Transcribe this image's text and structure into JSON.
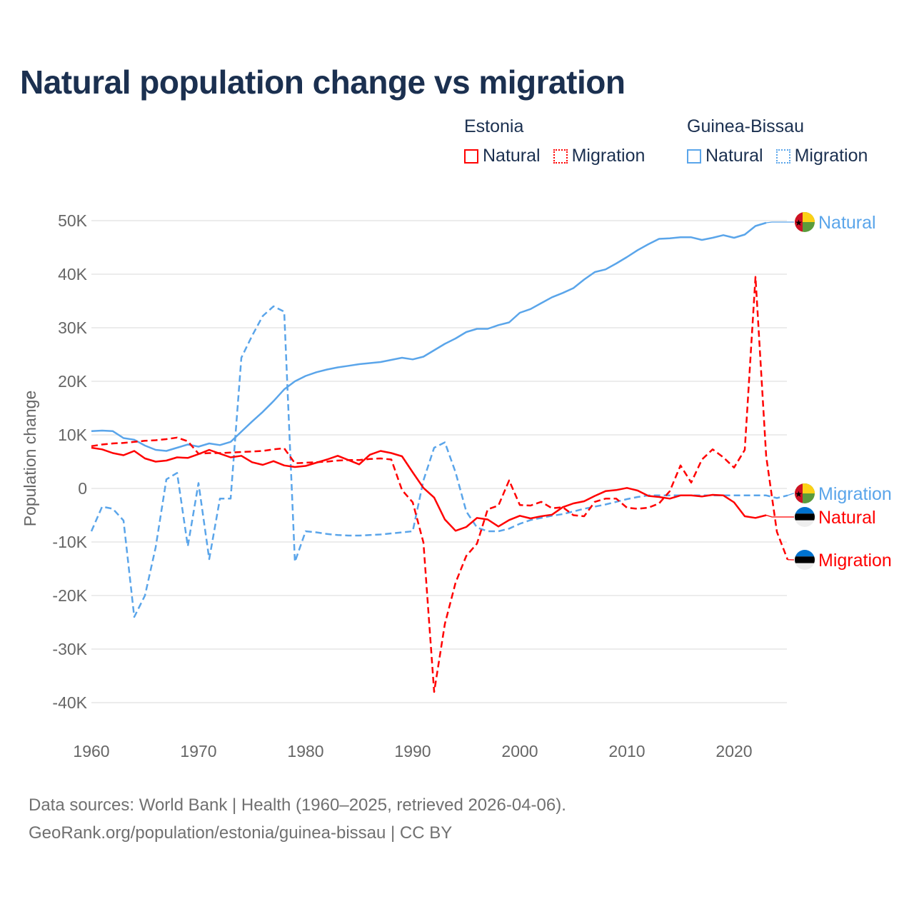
{
  "title": "Natural population change vs migration",
  "legend": {
    "groups": [
      {
        "name": "Estonia",
        "items": [
          "Natural",
          "Migration"
        ],
        "color": "#ff0000"
      },
      {
        "name": "Guinea-Bissau",
        "items": [
          "Natural",
          "Migration"
        ],
        "color": "#5aa5ea"
      }
    ]
  },
  "footer": {
    "line1": "Data sources: World Bank | Health (1960–2025, retrieved 2026-04-06).",
    "line2": "GeoRank.org/population/estonia/guinea-bissau | CC BY"
  },
  "chart_data": {
    "type": "line",
    "title": "Natural population change vs migration",
    "xlabel": "",
    "ylabel": "Population change",
    "xlim": [
      1960,
      2025
    ],
    "ylim": [
      -45000,
      50000
    ],
    "x_ticks": [
      "1960",
      "1970",
      "1980",
      "1990",
      "2000",
      "2010",
      "2020"
    ],
    "y_ticks": [
      {
        "value": 50000,
        "label": "50K"
      },
      {
        "value": 40000,
        "label": "40K"
      },
      {
        "value": 30000,
        "label": "30K"
      },
      {
        "value": 20000,
        "label": "20K"
      },
      {
        "value": 10000,
        "label": "10K"
      },
      {
        "value": 0,
        "label": "0"
      },
      {
        "value": -10000,
        "label": "-10K"
      },
      {
        "value": -20000,
        "label": "-20K"
      },
      {
        "value": -30000,
        "label": "-30K"
      },
      {
        "value": -40000,
        "label": "-40K"
      }
    ],
    "grid": true,
    "legend_position": "top-right",
    "x_start": 1960,
    "series": [
      {
        "name": "Guinea-Bissau Natural",
        "label": "Natural",
        "color": "#5aa5ea",
        "dash": false,
        "flag": "guinea-bissau",
        "values": [
          10.7,
          10.8,
          10.7,
          9.4,
          9.1,
          8.0,
          7.2,
          7.0,
          7.6,
          8.2,
          7.8,
          8.4,
          8.1,
          8.7,
          10.6,
          12.5,
          14.3,
          16.3,
          18.5,
          20.0,
          21.0,
          21.7,
          22.2,
          22.6,
          22.9,
          23.2,
          23.4,
          23.6,
          24.0,
          24.4,
          24.1,
          24.6,
          25.8,
          27.0,
          28.0,
          29.2,
          29.8,
          29.8,
          30.5,
          31.0,
          32.8,
          33.5,
          34.6,
          35.7,
          36.5,
          37.4,
          39.0,
          40.4,
          40.9,
          42.0,
          43.2,
          44.5,
          45.6,
          46.6,
          46.7,
          46.9,
          46.9,
          46.4,
          46.8,
          47.3,
          46.8,
          47.4,
          49.0,
          49.6,
          null,
          null
        ]
      },
      {
        "name": "Guinea-Bissau Migration",
        "label": "Migration",
        "color": "#5aa5ea",
        "dash": true,
        "flag": "guinea-bissau",
        "values": [
          -8.0,
          -3.4,
          -3.8,
          -6.0,
          -24.0,
          -20.0,
          -11.0,
          1.7,
          2.9,
          -10.8,
          1.0,
          -13.2,
          -1.9,
          -1.9,
          24.4,
          28.5,
          32.2,
          34.0,
          33.0,
          -13.7,
          -8.0,
          -8.2,
          -8.5,
          -8.7,
          -8.8,
          -8.8,
          -8.7,
          -8.6,
          -8.4,
          -8.2,
          -8.0,
          1.5,
          7.6,
          8.6,
          3.0,
          -4.3,
          -7.3,
          -8.0,
          -8.0,
          -7.5,
          -6.6,
          -5.9,
          -5.5,
          -5.1,
          -4.8,
          -4.3,
          -3.8,
          -3.4,
          -3.0,
          -2.5,
          -2.0,
          -1.6,
          -1.3,
          -1.3,
          -1.3,
          -1.3,
          -1.3,
          -1.3,
          -1.3,
          -1.3,
          -1.3,
          -1.3,
          -1.3,
          -1.3,
          -1.8,
          -1.3
        ]
      },
      {
        "name": "Estonia Natural",
        "label": "Natural",
        "color": "#ff0000",
        "dash": false,
        "flag": "estonia",
        "values": [
          7.6,
          7.3,
          6.6,
          6.2,
          7.0,
          5.6,
          5.0,
          5.2,
          5.8,
          5.7,
          6.4,
          7.2,
          6.5,
          5.8,
          6.1,
          4.9,
          4.4,
          5.1,
          4.3,
          4.0,
          4.2,
          4.8,
          5.4,
          6.1,
          5.3,
          4.5,
          6.3,
          7.0,
          6.6,
          6.0,
          3.0,
          0.1,
          -1.7,
          -5.8,
          -7.9,
          -7.2,
          -5.5,
          -5.8,
          -7.1,
          -5.9,
          -5.1,
          -5.6,
          -5.2,
          -4.9,
          -3.5,
          -2.8,
          -2.4,
          -1.4,
          -0.5,
          -0.3,
          0.1,
          -0.4,
          -1.4,
          -1.6,
          -1.9,
          -1.3,
          -1.3,
          -1.5,
          -1.2,
          -1.3,
          -2.6,
          -5.2,
          -5.5,
          -5.0,
          null,
          null
        ]
      },
      {
        "name": "Estonia Migration",
        "label": "Migration",
        "color": "#ff0000",
        "dash": true,
        "flag": "estonia",
        "values": [
          7.9,
          8.2,
          8.4,
          8.5,
          8.7,
          8.9,
          9.0,
          9.2,
          9.5,
          8.8,
          6.5,
          6.6,
          6.6,
          6.7,
          6.8,
          6.9,
          7.0,
          7.3,
          7.5,
          4.7,
          4.8,
          4.9,
          5.0,
          5.2,
          5.3,
          5.3,
          5.5,
          5.6,
          5.4,
          -0.3,
          -2.6,
          -10.1,
          -38.0,
          -25.3,
          -17.6,
          -12.6,
          -10.3,
          -3.9,
          -3.2,
          1.5,
          -3.1,
          -3.2,
          -2.5,
          -3.7,
          -3.5,
          -5.0,
          -5.2,
          -2.5,
          -1.9,
          -1.9,
          -3.6,
          -3.8,
          -3.6,
          -2.8,
          -0.5,
          4.3,
          1.1,
          5.4,
          7.3,
          5.8,
          3.9,
          7.2,
          39.5,
          6.0,
          -8.1,
          -13.3
        ]
      }
    ],
    "units": "thousands"
  }
}
